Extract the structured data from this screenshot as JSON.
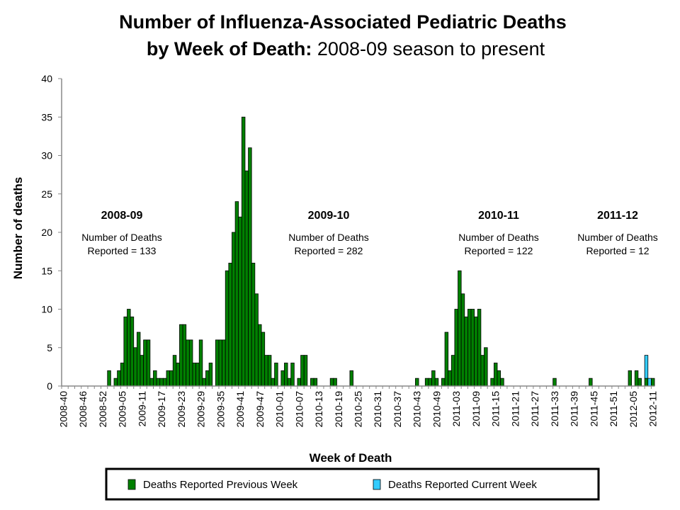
{
  "chart_data": {
    "type": "bar",
    "stacked": true,
    "title_bold_line1": "Number of Influenza-Associated Pediatric Deaths",
    "title_bold_line2": "by Week of Death:",
    "title_normal_line2": " 2008-09 season to present",
    "xlabel": "Week of Death",
    "ylabel": "Number of deaths",
    "ylim": [
      0,
      40
    ],
    "yticks": [
      0,
      5,
      10,
      15,
      20,
      25,
      30,
      35,
      40
    ],
    "grid": false,
    "legend_position": "bottom",
    "categories": [
      "2008-40",
      "2008-41",
      "2008-42",
      "2008-43",
      "2008-44",
      "2008-45",
      "2008-46",
      "2008-47",
      "2008-48",
      "2008-49",
      "2008-50",
      "2008-51",
      "2008-52",
      "2008-53",
      "2009-01",
      "2009-02",
      "2009-03",
      "2009-04",
      "2009-05",
      "2009-06",
      "2009-07",
      "2009-08",
      "2009-09",
      "2009-10",
      "2009-11",
      "2009-12",
      "2009-13",
      "2009-14",
      "2009-15",
      "2009-16",
      "2009-17",
      "2009-18",
      "2009-19",
      "2009-20",
      "2009-21",
      "2009-22",
      "2009-23",
      "2009-24",
      "2009-25",
      "2009-26",
      "2009-27",
      "2009-28",
      "2009-29",
      "2009-30",
      "2009-31",
      "2009-32",
      "2009-33",
      "2009-34",
      "2009-35",
      "2009-36",
      "2009-37",
      "2009-38",
      "2009-39",
      "2009-40",
      "2009-41",
      "2009-42",
      "2009-43",
      "2009-44",
      "2009-45",
      "2009-46",
      "2009-47",
      "2009-48",
      "2009-49",
      "2009-50",
      "2009-51",
      "2009-52",
      "2010-01",
      "2010-02",
      "2010-03",
      "2010-04",
      "2010-05",
      "2010-06",
      "2010-07",
      "2010-08",
      "2010-09",
      "2010-10",
      "2010-11",
      "2010-12",
      "2010-13",
      "2010-14",
      "2010-15",
      "2010-16",
      "2010-17",
      "2010-18",
      "2010-19",
      "2010-20",
      "2010-21",
      "2010-22",
      "2010-23",
      "2010-24",
      "2010-25",
      "2010-26",
      "2010-27",
      "2010-28",
      "2010-29",
      "2010-30",
      "2010-31",
      "2010-32",
      "2010-33",
      "2010-34",
      "2010-35",
      "2010-36",
      "2010-37",
      "2010-38",
      "2010-39",
      "2010-40",
      "2010-41",
      "2010-42",
      "2010-43",
      "2010-44",
      "2010-45",
      "2010-46",
      "2010-47",
      "2010-48",
      "2010-49",
      "2010-50",
      "2010-51",
      "2010-52",
      "2011-01",
      "2011-02",
      "2011-03",
      "2011-04",
      "2011-05",
      "2011-06",
      "2011-07",
      "2011-08",
      "2011-09",
      "2011-10",
      "2011-11",
      "2011-12",
      "2011-13",
      "2011-14",
      "2011-15",
      "2011-16",
      "2011-17",
      "2011-18",
      "2011-19",
      "2011-20",
      "2011-21",
      "2011-22",
      "2011-23",
      "2011-24",
      "2011-25",
      "2011-26",
      "2011-27",
      "2011-28",
      "2011-29",
      "2011-30",
      "2011-31",
      "2011-32",
      "2011-33",
      "2011-34",
      "2011-35",
      "2011-36",
      "2011-37",
      "2011-38",
      "2011-39",
      "2011-40",
      "2011-41",
      "2011-42",
      "2011-43",
      "2011-44",
      "2011-45",
      "2011-46",
      "2011-47",
      "2011-48",
      "2011-49",
      "2011-50",
      "2011-51",
      "2011-52",
      "2012-01",
      "2012-02",
      "2012-03",
      "2012-04",
      "2012-05",
      "2012-06",
      "2012-07",
      "2012-08",
      "2012-09",
      "2012-10",
      "2012-11"
    ],
    "xtick_labels": [
      "2008-40",
      "2008-46",
      "2008-52",
      "2009-05",
      "2009-11",
      "2009-17",
      "2009-23",
      "2009-29",
      "2009-35",
      "2009-41",
      "2009-47",
      "2010-01",
      "2010-07",
      "2010-13",
      "2010-19",
      "2010-25",
      "2010-31",
      "2010-37",
      "2010-43",
      "2010-49",
      "2011-03",
      "2011-09",
      "2011-15",
      "2011-21",
      "2011-27",
      "2011-33",
      "2011-39",
      "2011-45",
      "2011-51",
      "2012-05",
      "2012-11"
    ],
    "series": [
      {
        "name": "Deaths Reported Previous Week",
        "color": "#008000",
        "values": [
          0,
          0,
          0,
          0,
          0,
          0,
          0,
          0,
          0,
          0,
          0,
          0,
          0,
          0,
          2,
          0,
          1,
          2,
          3,
          9,
          10,
          9,
          5,
          7,
          4,
          6,
          6,
          1,
          2,
          1,
          1,
          1,
          2,
          2,
          4,
          3,
          8,
          8,
          6,
          6,
          3,
          3,
          6,
          1,
          2,
          3,
          0,
          6,
          6,
          6,
          15,
          16,
          20,
          24,
          22,
          35,
          28,
          31,
          16,
          12,
          8,
          7,
          4,
          4,
          1,
          3,
          0,
          2,
          3,
          1,
          3,
          0,
          1,
          4,
          4,
          0,
          1,
          1,
          0,
          0,
          0,
          0,
          1,
          1,
          0,
          0,
          0,
          0,
          2,
          0,
          0,
          0,
          0,
          0,
          0,
          0,
          0,
          0,
          0,
          0,
          0,
          0,
          0,
          0,
          0,
          0,
          0,
          0,
          1,
          0,
          0,
          1,
          1,
          2,
          1,
          0,
          1,
          7,
          2,
          4,
          10,
          15,
          12,
          9,
          10,
          10,
          9,
          10,
          4,
          5,
          0,
          1,
          3,
          2,
          1,
          0,
          0,
          0,
          0,
          0,
          0,
          0,
          0,
          0,
          0,
          0,
          0,
          0,
          0,
          0,
          1,
          0,
          0,
          0,
          0,
          0,
          0,
          0,
          0,
          0,
          0,
          1,
          0,
          0,
          0,
          0,
          0,
          0,
          0,
          0,
          0,
          0,
          0,
          2,
          0,
          2,
          1,
          0,
          1,
          0,
          1
        ]
      },
      {
        "name": "Deaths Reported Current Week",
        "color": "#33CCFF",
        "values": [
          0,
          0,
          0,
          0,
          0,
          0,
          0,
          0,
          0,
          0,
          0,
          0,
          0,
          0,
          0,
          0,
          0,
          0,
          0,
          0,
          0,
          0,
          0,
          0,
          0,
          0,
          0,
          0,
          0,
          0,
          0,
          0,
          0,
          0,
          0,
          0,
          0,
          0,
          0,
          0,
          0,
          0,
          0,
          0,
          0,
          0,
          0,
          0,
          0,
          0,
          0,
          0,
          0,
          0,
          0,
          0,
          0,
          0,
          0,
          0,
          0,
          0,
          0,
          0,
          0,
          0,
          0,
          0,
          0,
          0,
          0,
          0,
          0,
          0,
          0,
          0,
          0,
          0,
          0,
          0,
          0,
          0,
          0,
          0,
          0,
          0,
          0,
          0,
          0,
          0,
          0,
          0,
          0,
          0,
          0,
          0,
          0,
          0,
          0,
          0,
          0,
          0,
          0,
          0,
          0,
          0,
          0,
          0,
          0,
          0,
          0,
          0,
          0,
          0,
          0,
          0,
          0,
          0,
          0,
          0,
          0,
          0,
          0,
          0,
          0,
          0,
          0,
          0,
          0,
          0,
          0,
          0,
          0,
          0,
          0,
          0,
          0,
          0,
          0,
          0,
          0,
          0,
          0,
          0,
          0,
          0,
          0,
          0,
          0,
          0,
          0,
          0,
          0,
          0,
          0,
          0,
          0,
          0,
          0,
          0,
          0,
          0,
          0,
          0,
          0,
          0,
          0,
          0,
          0,
          0,
          0,
          0,
          0,
          0,
          0,
          0,
          0,
          0,
          3,
          1,
          0
        ]
      }
    ],
    "annotations": [
      {
        "season": "2008-09",
        "line1": "Number of Deaths",
        "line2": "Reported = 133"
      },
      {
        "season": "2009-10",
        "line1": "Number of Deaths",
        "line2": "Reported = 282"
      },
      {
        "season": "2010-11",
        "line1": "Number of Deaths",
        "line2": "Reported = 122"
      },
      {
        "season": "2011-12",
        "line1": "Number of Deaths",
        "line2": "Reported = 12"
      }
    ]
  }
}
